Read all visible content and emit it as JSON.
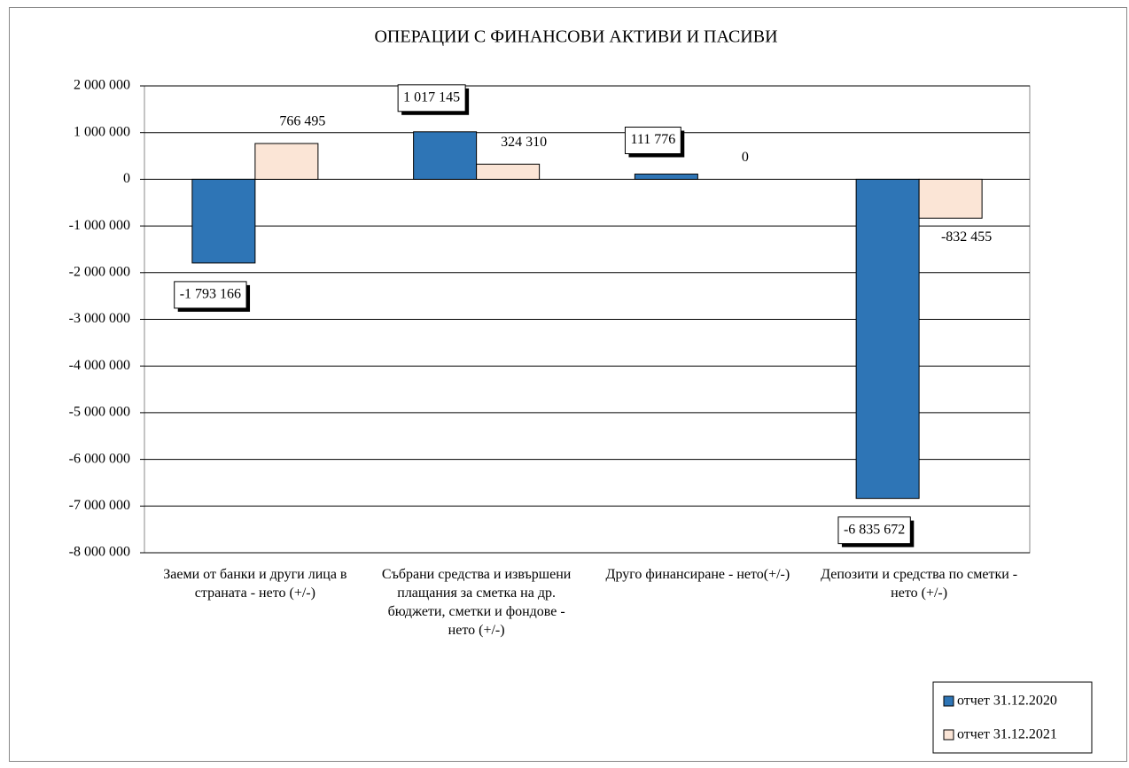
{
  "chart_data": {
    "type": "bar",
    "title": "ОПЕРАЦИИ С ФИНАНСОВИ АКТИВИ И ПАСИВИ",
    "categories": [
      "Заеми от банки и други лица в страната - нето (+/-)",
      "Събрани средства и извършени плащания за сметка на др. бюджети, сметки и фондове - нето (+/-)",
      "Друго финансиране - нето(+/-)",
      "Депозити и средства по сметки - нето (+/-)"
    ],
    "series": [
      {
        "name": "отчет 31.12.2020",
        "color": "#2e75b6",
        "values": [
          -1793166,
          1017145,
          111776,
          -6835672
        ],
        "value_labels": [
          "-1 793 166",
          "1 017 145",
          "111 776",
          "-6 835 672"
        ],
        "boxed_labels": true
      },
      {
        "name": "отчет 31.12.2021",
        "color": "#fbe5d6",
        "values": [
          766495,
          324310,
          0,
          -832455
        ],
        "value_labels": [
          "766 495",
          "324 310",
          "0",
          "-832 455"
        ],
        "boxed_labels": false
      }
    ],
    "ylim": [
      -8000000,
      2000000
    ],
    "yticks": [
      {
        "value": -8000000,
        "label": "-8 000 000"
      },
      {
        "value": -7000000,
        "label": "-7 000 000"
      },
      {
        "value": -6000000,
        "label": "-6 000 000"
      },
      {
        "value": -5000000,
        "label": "-5 000 000"
      },
      {
        "value": -4000000,
        "label": "-4 000 000"
      },
      {
        "value": -3000000,
        "label": "-3 000 000"
      },
      {
        "value": -2000000,
        "label": "-2 000 000"
      },
      {
        "value": -1000000,
        "label": "-1 000 000"
      },
      0,
      {
        "value": 1000000,
        "label": "1 000 000"
      },
      {
        "value": 2000000,
        "label": "2 000 000"
      }
    ],
    "grid": true,
    "legend": "bottom-right"
  }
}
